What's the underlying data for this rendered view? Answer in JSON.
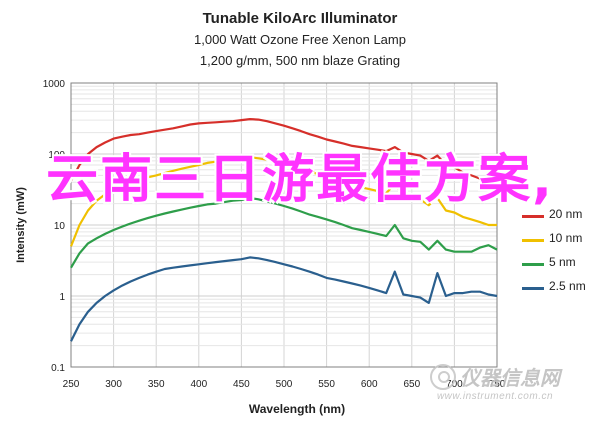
{
  "chart_data": {
    "type": "line",
    "title": "Tunable KiloArc Illuminator",
    "subtitle_1": "1,000 Watt Ozone Free Xenon Lamp",
    "subtitle_2": "1,200 g/mm, 500 nm blaze Grating",
    "xlabel": "Wavelength (nm)",
    "ylabel": "Intensity (mW)",
    "xlim": [
      250,
      750
    ],
    "ylim": [
      0.1,
      1000
    ],
    "y_scale": "log",
    "x_ticks": [
      "250",
      "300",
      "350",
      "400",
      "450",
      "500",
      "550",
      "600",
      "650",
      "700",
      "750"
    ],
    "y_ticks": [
      "0.1",
      "1",
      "10",
      "100",
      "1000"
    ],
    "grid": true,
    "legend_position": "right",
    "x": [
      250,
      260,
      270,
      280,
      290,
      300,
      310,
      320,
      330,
      340,
      350,
      360,
      370,
      380,
      390,
      400,
      410,
      420,
      430,
      440,
      450,
      460,
      470,
      480,
      490,
      500,
      510,
      520,
      530,
      540,
      550,
      560,
      570,
      580,
      590,
      600,
      610,
      620,
      630,
      640,
      650,
      660,
      670,
      680,
      690,
      700,
      710,
      720,
      730,
      740,
      750
    ],
    "series": [
      {
        "name": "20 nm",
        "color": "#d62f2a",
        "values": [
          42,
          70,
          100,
          125,
          145,
          165,
          175,
          185,
          190,
          200,
          210,
          220,
          230,
          245,
          260,
          270,
          275,
          280,
          285,
          290,
          300,
          310,
          305,
          290,
          270,
          250,
          230,
          210,
          190,
          175,
          160,
          150,
          140,
          130,
          125,
          120,
          115,
          110,
          125,
          105,
          100,
          95,
          80,
          95,
          70,
          65,
          55,
          50,
          45,
          42,
          40
        ]
      },
      {
        "name": "10 nm",
        "color": "#f0c000",
        "values": [
          5,
          10,
          16,
          22,
          27,
          32,
          36,
          40,
          44,
          47,
          50,
          54,
          58,
          62,
          66,
          70,
          75,
          78,
          82,
          85,
          88,
          90,
          87,
          83,
          78,
          72,
          67,
          62,
          57,
          52,
          48,
          44,
          40,
          37,
          34,
          32,
          30,
          28,
          38,
          26,
          25,
          23,
          19,
          24,
          16,
          15,
          13,
          12,
          11,
          10,
          10
        ]
      },
      {
        "name": "5 nm",
        "color": "#2e9e4a",
        "values": [
          2.5,
          4,
          5.5,
          6.5,
          7.5,
          8.5,
          9.5,
          10.5,
          11.5,
          12.5,
          13.5,
          14.5,
          15.5,
          16.5,
          17.5,
          18.5,
          19.5,
          20,
          21,
          22,
          22.5,
          24,
          23,
          21.5,
          20,
          18.5,
          17,
          15.5,
          14,
          13,
          12,
          11,
          10,
          9,
          8.5,
          8,
          7.5,
          7,
          10,
          6.5,
          6,
          5.8,
          4.5,
          6,
          4.5,
          4.2,
          4.2,
          4.2,
          4.8,
          5.2,
          4.5
        ]
      },
      {
        "name": "2.5 nm",
        "color": "#2a5f8e",
        "values": [
          0.23,
          0.4,
          0.6,
          0.8,
          1,
          1.2,
          1.4,
          1.6,
          1.8,
          2,
          2.2,
          2.4,
          2.5,
          2.6,
          2.7,
          2.8,
          2.9,
          3,
          3.1,
          3.2,
          3.3,
          3.5,
          3.4,
          3.2,
          3,
          2.8,
          2.6,
          2.4,
          2.2,
          2,
          1.8,
          1.7,
          1.6,
          1.5,
          1.4,
          1.3,
          1.2,
          1.1,
          2.2,
          1.05,
          1,
          0.95,
          0.8,
          2.1,
          1,
          1.1,
          1.1,
          1.15,
          1.15,
          1.05,
          1
        ]
      }
    ]
  },
  "overlay_text": "云南三日游最佳方案,",
  "watermark": {
    "text": "仪器信息网",
    "url": "www.instrument.com.cn"
  }
}
